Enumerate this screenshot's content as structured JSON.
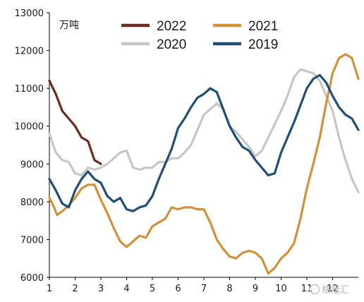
{
  "chart_data": {
    "type": "line",
    "ylabel": "万吨",
    "xlabel": "",
    "ylim": [
      6000,
      13000
    ],
    "xlim": [
      1,
      13
    ],
    "y_ticks": [
      "6000",
      "7000",
      "8000",
      "9000",
      "10000",
      "11000",
      "12000",
      "13000"
    ],
    "x_ticks": [
      "1",
      "2",
      "3",
      "4",
      "5",
      "6",
      "7",
      "8",
      "9",
      "10",
      "11",
      "12"
    ],
    "grid": false,
    "legend_position": "top",
    "series": [
      {
        "name": "2022",
        "color": "#6b2a22",
        "x": [
          1.0,
          1.25,
          1.5,
          1.75,
          2.0,
          2.25,
          2.5,
          2.75,
          3.0
        ],
        "y": [
          11200,
          10850,
          10400,
          10200,
          10000,
          9700,
          9600,
          9100,
          9000
        ]
      },
      {
        "name": "2021",
        "color": "#d29137",
        "x": [
          1.0,
          1.15,
          1.3,
          1.5,
          1.75,
          2.0,
          2.25,
          2.5,
          2.75,
          3.0,
          3.25,
          3.5,
          3.75,
          4.0,
          4.25,
          4.5,
          4.75,
          5.0,
          5.25,
          5.5,
          5.75,
          6.0,
          6.25,
          6.5,
          6.75,
          7.0,
          7.25,
          7.5,
          7.75,
          8.0,
          8.25,
          8.5,
          8.75,
          9.0,
          9.25,
          9.5,
          9.75,
          10.0,
          10.25,
          10.5,
          10.75,
          11.0,
          11.25,
          11.5,
          11.75,
          12.0,
          12.25,
          12.5,
          12.75,
          13.0
        ],
        "y": [
          8100,
          7900,
          7650,
          7750,
          7900,
          8100,
          8350,
          8450,
          8450,
          8050,
          7700,
          7300,
          6950,
          6800,
          6950,
          7100,
          7050,
          7350,
          7450,
          7550,
          7850,
          7800,
          7850,
          7850,
          7800,
          7800,
          7450,
          7000,
          6750,
          6550,
          6500,
          6650,
          6700,
          6650,
          6500,
          6100,
          6250,
          6500,
          6650,
          6900,
          7550,
          8350,
          9000,
          9700,
          10600,
          11400,
          11800,
          11900,
          11800,
          11250
        ]
      },
      {
        "name": "2020",
        "color": "#c6c6c6",
        "x": [
          1.0,
          1.25,
          1.5,
          1.75,
          2.0,
          2.25,
          2.5,
          2.75,
          3.0,
          3.25,
          3.5,
          3.75,
          4.0,
          4.25,
          4.5,
          4.75,
          5.0,
          5.25,
          5.5,
          5.75,
          6.0,
          6.25,
          6.5,
          6.75,
          7.0,
          7.25,
          7.5,
          7.75,
          8.0,
          8.25,
          8.5,
          8.75,
          9.0,
          9.25,
          9.5,
          9.75,
          10.0,
          10.25,
          10.5,
          10.75,
          11.0,
          11.25,
          11.5,
          11.75,
          12.0,
          12.25,
          12.5,
          12.75,
          13.0
        ],
        "y": [
          9800,
          9300,
          9100,
          9050,
          8750,
          8700,
          8900,
          8850,
          8900,
          9000,
          9150,
          9300,
          9350,
          8900,
          8850,
          8900,
          8900,
          9050,
          9050,
          9150,
          9150,
          9300,
          9500,
          9900,
          10300,
          10450,
          10600,
          10450,
          10000,
          9850,
          9650,
          9450,
          9200,
          9350,
          9700,
          10050,
          10400,
          10800,
          11300,
          11500,
          11450,
          11400,
          11200,
          10800,
          10400,
          9700,
          9100,
          8600,
          8250
        ]
      },
      {
        "name": "2019",
        "color": "#1f4e79",
        "x": [
          1.0,
          1.25,
          1.5,
          1.75,
          2.0,
          2.25,
          2.5,
          2.75,
          3.0,
          3.25,
          3.5,
          3.75,
          4.0,
          4.25,
          4.5,
          4.75,
          5.0,
          5.25,
          5.5,
          5.75,
          6.0,
          6.25,
          6.5,
          6.75,
          7.0,
          7.25,
          7.5,
          7.75,
          8.0,
          8.25,
          8.5,
          8.75,
          9.0,
          9.25,
          9.5,
          9.75,
          10.0,
          10.25,
          10.5,
          10.75,
          11.0,
          11.25,
          11.5,
          11.75,
          12.0,
          12.25,
          12.5,
          12.75,
          13.0
        ],
        "y": [
          8600,
          8300,
          7950,
          7850,
          8300,
          8600,
          8800,
          8600,
          8500,
          8150,
          8000,
          8100,
          7800,
          7750,
          7850,
          7900,
          8150,
          8600,
          9000,
          9400,
          9950,
          10200,
          10500,
          10750,
          10850,
          11000,
          10900,
          10450,
          10000,
          9700,
          9450,
          9350,
          9100,
          8900,
          8700,
          8750,
          9300,
          9700,
          10100,
          10550,
          11000,
          11250,
          11350,
          11150,
          10800,
          10500,
          10300,
          10200,
          9900
        ]
      }
    ]
  },
  "watermark": "格隆汇"
}
